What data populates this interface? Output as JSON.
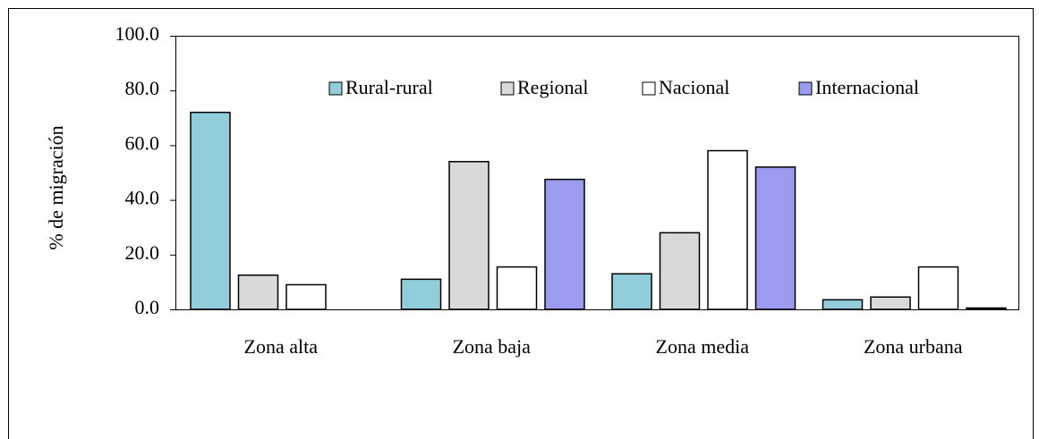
{
  "chart_data": {
    "type": "bar",
    "y_label": "% de migración",
    "categories": [
      "Zona alta",
      "Zona baja",
      "Zona media",
      "Zona urbana"
    ],
    "series": [
      {
        "name": "Rural-rural",
        "color": "#92cddc",
        "values": [
          72,
          11,
          13,
          3.5
        ]
      },
      {
        "name": "Regional",
        "color": "#d9d9d9",
        "values": [
          12.5,
          54,
          28,
          4.5
        ]
      },
      {
        "name": "Nacional",
        "color": "#ffffff",
        "values": [
          9,
          15.5,
          58,
          15.5
        ]
      },
      {
        "name": "Internacional",
        "color": "#9b9cf0",
        "values": [
          0,
          47.5,
          52,
          0.5
        ]
      }
    ],
    "ylim": [
      0,
      100
    ],
    "yticks": [
      {
        "value": 0,
        "label": "0.0"
      },
      {
        "value": 20,
        "label": "20.0"
      },
      {
        "value": 40,
        "label": "40.0"
      },
      {
        "value": 60,
        "label": "60.0"
      },
      {
        "value": 80,
        "label": "80.0"
      },
      {
        "value": 100,
        "label": "100.0"
      }
    ],
    "legend": "top"
  }
}
